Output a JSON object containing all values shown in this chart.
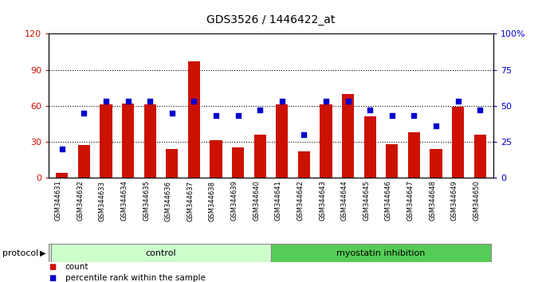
{
  "title": "GDS3526 / 1446422_at",
  "samples": [
    "GSM344631",
    "GSM344632",
    "GSM344633",
    "GSM344634",
    "GSM344635",
    "GSM344636",
    "GSM344637",
    "GSM344638",
    "GSM344639",
    "GSM344640",
    "GSM344641",
    "GSM344642",
    "GSM344643",
    "GSM344644",
    "GSM344645",
    "GSM344646",
    "GSM344647",
    "GSM344648",
    "GSM344649",
    "GSM344650"
  ],
  "counts": [
    4,
    27,
    61,
    62,
    61,
    24,
    97,
    31,
    25,
    36,
    61,
    22,
    61,
    70,
    51,
    28,
    38,
    24,
    59,
    36
  ],
  "percentiles": [
    20,
    45,
    53,
    53,
    53,
    45,
    53,
    43,
    43,
    47,
    53,
    30,
    53,
    53,
    47,
    43,
    43,
    36,
    53,
    47
  ],
  "protocol_groups": [
    {
      "label": "control",
      "start": 0,
      "end": 9,
      "color": "#ccffcc"
    },
    {
      "label": "myostatin inhibition",
      "start": 10,
      "end": 19,
      "color": "#55cc55"
    }
  ],
  "bar_color": "#cc1100",
  "dot_color": "#0000cc",
  "ylim_left": [
    0,
    120
  ],
  "ylim_right": [
    0,
    100
  ],
  "left_yticks": [
    0,
    30,
    60,
    90,
    120
  ],
  "right_yticks": [
    0,
    25,
    50,
    75,
    100
  ],
  "right_yticklabels": [
    "0",
    "25",
    "50",
    "75",
    "100%"
  ],
  "grid_values": [
    30,
    60,
    90
  ],
  "bg_color": "#ffffff",
  "legend_items": [
    {
      "label": "count",
      "color": "#cc1100"
    },
    {
      "label": "percentile rank within the sample",
      "color": "#0000cc"
    }
  ],
  "bar_width": 0.55
}
